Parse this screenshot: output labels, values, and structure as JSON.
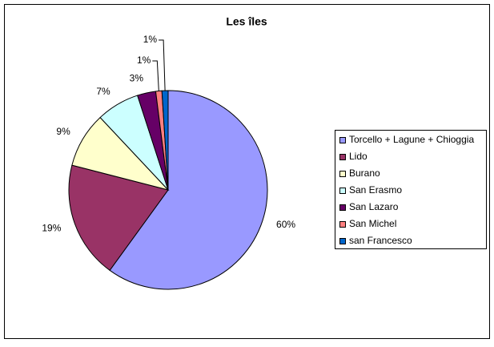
{
  "chart_data": {
    "type": "pie",
    "title": "Les îles",
    "categories": [
      "Torcello + Lagune + Chioggia",
      "Lido",
      "Burano",
      "San Erasmo",
      "San Lazaro",
      "San Michel",
      "san Francesco"
    ],
    "values": [
      60,
      19,
      9,
      7,
      3,
      1,
      1
    ],
    "value_labels": [
      "60%",
      "19%",
      "9%",
      "7%",
      "3%",
      "1%",
      "1%"
    ],
    "colors": [
      "#9999ff",
      "#993366",
      "#ffffcc",
      "#ccffff",
      "#660066",
      "#ff8080",
      "#0066cc"
    ],
    "legend": "right"
  }
}
